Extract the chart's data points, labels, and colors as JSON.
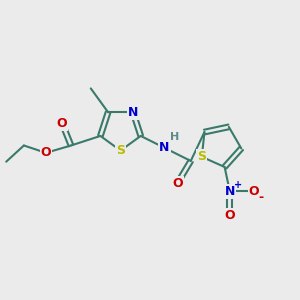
{
  "bg_color": "#ebebeb",
  "bond_color": "#3a7a6a",
  "bond_width": 1.5,
  "atom_colors": {
    "S": "#bbbb00",
    "N": "#0000cc",
    "O": "#cc0000",
    "H": "#5a8a8a",
    "C": "#3a7a6a"
  },
  "font_size": 9,
  "figsize": [
    3.0,
    3.0
  ],
  "dpi": 100,
  "xlim": [
    0,
    10
  ],
  "ylim": [
    0,
    10
  ]
}
